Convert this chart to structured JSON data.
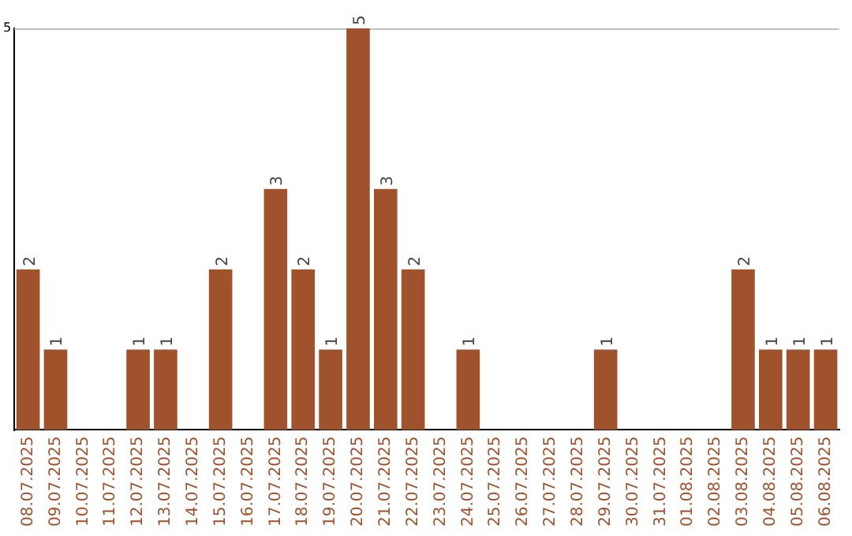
{
  "chart_data": {
    "type": "bar",
    "categories": [
      "08.07.2025",
      "09.07.2025",
      "10.07.2025",
      "11.07.2025",
      "12.07.2025",
      "13.07.2025",
      "14.07.2025",
      "15.07.2025",
      "16.07.2025",
      "17.07.2025",
      "18.07.2025",
      "19.07.2025",
      "20.07.2025",
      "21.07.2025",
      "22.07.2025",
      "23.07.2025",
      "24.07.2025",
      "25.07.2025",
      "26.07.2025",
      "27.07.2025",
      "28.07.2025",
      "29.07.2025",
      "30.07.2025",
      "31.07.2025",
      "01.08.2025",
      "02.08.2025",
      "03.08.2025",
      "04.08.2025",
      "05.08.2025",
      "06.08.2025"
    ],
    "values": [
      2,
      1,
      0,
      0,
      1,
      1,
      0,
      2,
      0,
      3,
      2,
      1,
      5,
      3,
      2,
      0,
      1,
      0,
      0,
      0,
      0,
      1,
      0,
      0,
      0,
      0,
      2,
      1,
      1,
      1
    ],
    "value_labels": [
      "2",
      "1",
      null,
      null,
      "1",
      "1",
      null,
      "2",
      null,
      "3",
      "2",
      "1",
      "5",
      "3",
      "2",
      null,
      "1",
      null,
      null,
      null,
      null,
      "1",
      null,
      null,
      null,
      null,
      "2",
      "1",
      "1",
      "1"
    ],
    "color": "#a0522d",
    "ylim": [
      0,
      5
    ],
    "yticks": [
      5
    ],
    "legend": false
  }
}
